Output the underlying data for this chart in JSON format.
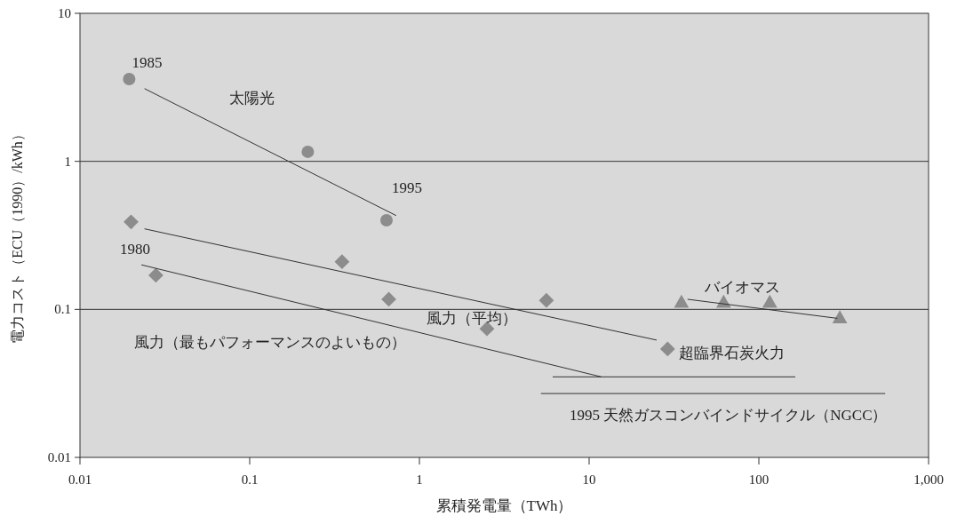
{
  "chart_data": {
    "type": "scatter",
    "xlabel": "累積発電量（TWh）",
    "ylabel": "電力コスト（ECU（1990）/kWh）",
    "log": "xy",
    "ref_lines": [
      {
        "axis": "y",
        "value": 1,
        "color": "#333333"
      },
      {
        "axis": "y",
        "value": 0.1,
        "color": "#333333"
      }
    ],
    "xlim": [
      0.01,
      1000
    ],
    "ylim": [
      0.01,
      10
    ],
    "xticks": [
      0.01,
      0.1,
      1,
      10,
      100,
      {
        "value": 1000,
        "label": "1,000"
      }
    ],
    "yticks": [
      0.01,
      0.1,
      1,
      10
    ],
    "series": [
      {
        "type": "scatter",
        "marker": "circle",
        "color": "#8c8c8c",
        "x": [
          0.0195,
          0.22,
          0.64
        ],
        "values": [
          3.6,
          1.16,
          0.4
        ]
      },
      {
        "type": "line",
        "marker": "none",
        "color": "#333333",
        "x": [
          0.024,
          0.73
        ],
        "values": [
          3.1,
          0.43
        ]
      },
      {
        "type": "scatter",
        "marker": "diamond",
        "color": "#8c8c8c",
        "x": [
          0.02,
          0.35,
          5.6,
          29
        ],
        "values": [
          0.39,
          0.21,
          0.115,
          0.054
        ]
      },
      {
        "type": "line",
        "marker": "none",
        "color": "#333333",
        "x": [
          0.024,
          25
        ],
        "values": [
          0.35,
          0.062
        ]
      },
      {
        "type": "scatter",
        "marker": "diamond",
        "color": "#8c8c8c",
        "x": [
          0.028,
          0.66,
          2.5
        ],
        "values": [
          0.17,
          0.117,
          0.074
        ]
      },
      {
        "type": "line",
        "marker": "none",
        "color": "#333333",
        "x": [
          0.023,
          11.8
        ],
        "values": [
          0.2,
          0.035
        ]
      },
      {
        "type": "scatter",
        "marker": "triangle",
        "color": "#8c8c8c",
        "x": [
          35,
          62,
          116,
          300
        ],
        "values": [
          0.112,
          0.112,
          0.112,
          0.088
        ]
      },
      {
        "type": "line",
        "marker": "none",
        "color": "#333333",
        "x": [
          38,
          290
        ],
        "values": [
          0.117,
          0.087
        ]
      },
      {
        "type": "line",
        "marker": "none",
        "color": "#333333",
        "x": [
          6.1,
          164
        ],
        "values": [
          0.035,
          0.035
        ]
      },
      {
        "type": "line",
        "marker": "none",
        "color": "#333333",
        "x": [
          5.2,
          555
        ],
        "values": [
          0.027,
          0.027
        ]
      }
    ],
    "annotations": [
      {
        "text": "1985",
        "x": 0.0195,
        "y": 3.6
      },
      {
        "text": "太陽光",
        "x": 0.06,
        "y": 1.82
      },
      {
        "text": "1995",
        "x": 0.64,
        "y": 0.4
      },
      {
        "text": "1980",
        "x": 0.023,
        "y": 0.2
      },
      {
        "text": "風力（平均）",
        "x": 1.8,
        "y": 0.119
      },
      {
        "text": "風力（最もパフォーマンスのよいもの）",
        "x": 0.14,
        "y": 0.121
      },
      {
        "text": "バイオマス",
        "x": 80,
        "y": 0.105
      },
      {
        "text": "超臨界石炭火力",
        "x": 29,
        "y": 0.054
      },
      {
        "text": "1995 天然ガスコンバインドサイクル（NGCC）",
        "x": 52,
        "y": 0.027
      }
    ]
  }
}
